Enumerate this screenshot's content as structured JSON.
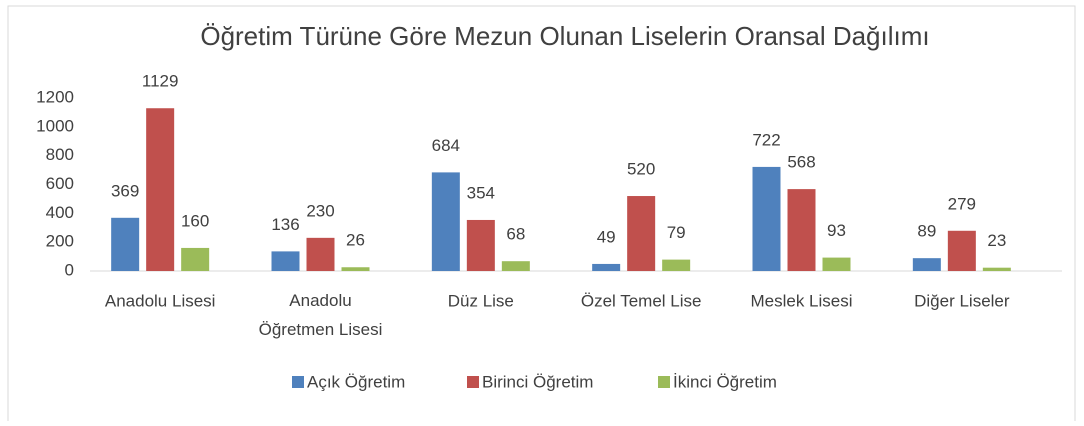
{
  "chart_data": {
    "type": "bar",
    "title": "Öğretim Türüne Göre Mezun Olunan Liselerin Oransal Dağılımı",
    "categories": [
      "Anadolu Lisesi",
      "Anadolu Öğretmen Lisesi",
      "Düz Lise",
      "Özel Temel Lise",
      "Meslek Lisesi",
      "Diğer Liseler"
    ],
    "series": [
      {
        "name": "Açık Öğretim",
        "color": "#4f81bd",
        "values": [
          369,
          136,
          684,
          49,
          722,
          89
        ]
      },
      {
        "name": "Birinci Öğretim",
        "color": "#c0504d",
        "values": [
          1129,
          230,
          354,
          520,
          568,
          279
        ]
      },
      {
        "name": "İkinci Öğretim",
        "color": "#9bbb59",
        "values": [
          160,
          26,
          68,
          79,
          93,
          23
        ]
      }
    ],
    "ylim": [
      0,
      1200
    ],
    "yticks": [
      0,
      200,
      400,
      600,
      800,
      1000,
      1200
    ],
    "grid": false,
    "legend": "bottom"
  }
}
